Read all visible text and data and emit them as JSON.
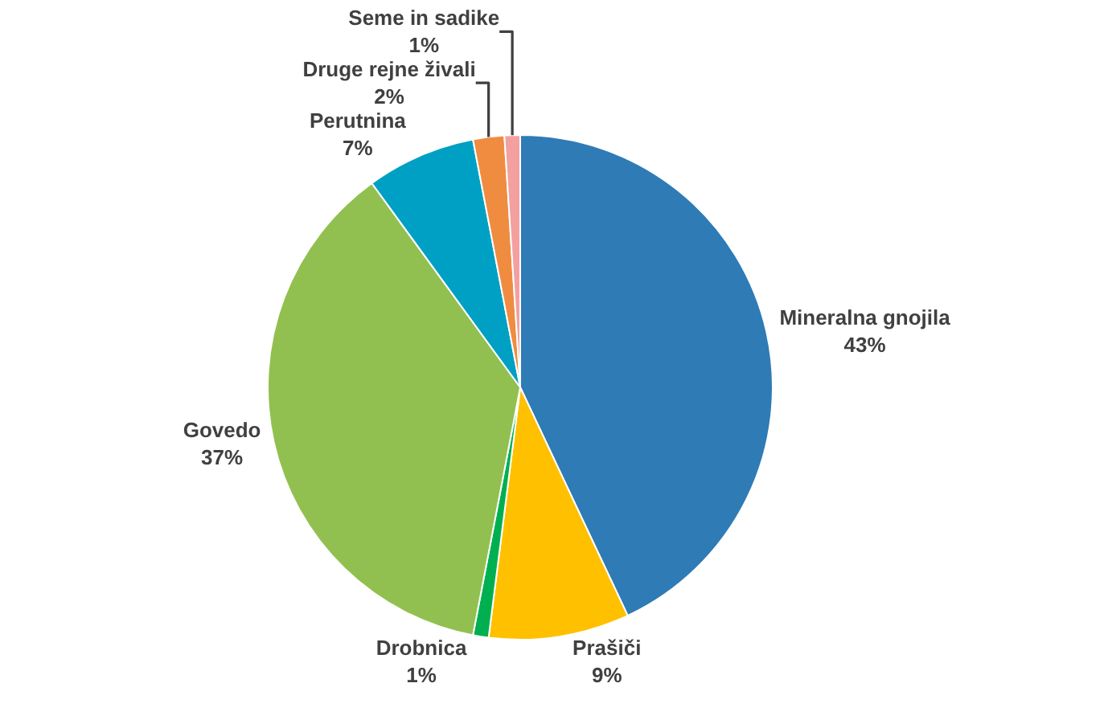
{
  "chart_data": {
    "type": "pie",
    "categories": [
      "Mineralna gnojila",
      "Prašiči",
      "Drobnica",
      "Govedo",
      "Perutnina",
      "Druge rejne živali",
      "Seme in sadike"
    ],
    "values": [
      43,
      9,
      1,
      37,
      7,
      2,
      1
    ],
    "value_labels": [
      "43%",
      "9%",
      "1%",
      "37%",
      "7%",
      "2%",
      "1%"
    ],
    "colors": [
      "#2e7bb6",
      "#ffc000",
      "#00b050",
      "#92c050",
      "#00a0c4",
      "#f08c40",
      "#f4a0a0"
    ],
    "legend": false
  }
}
